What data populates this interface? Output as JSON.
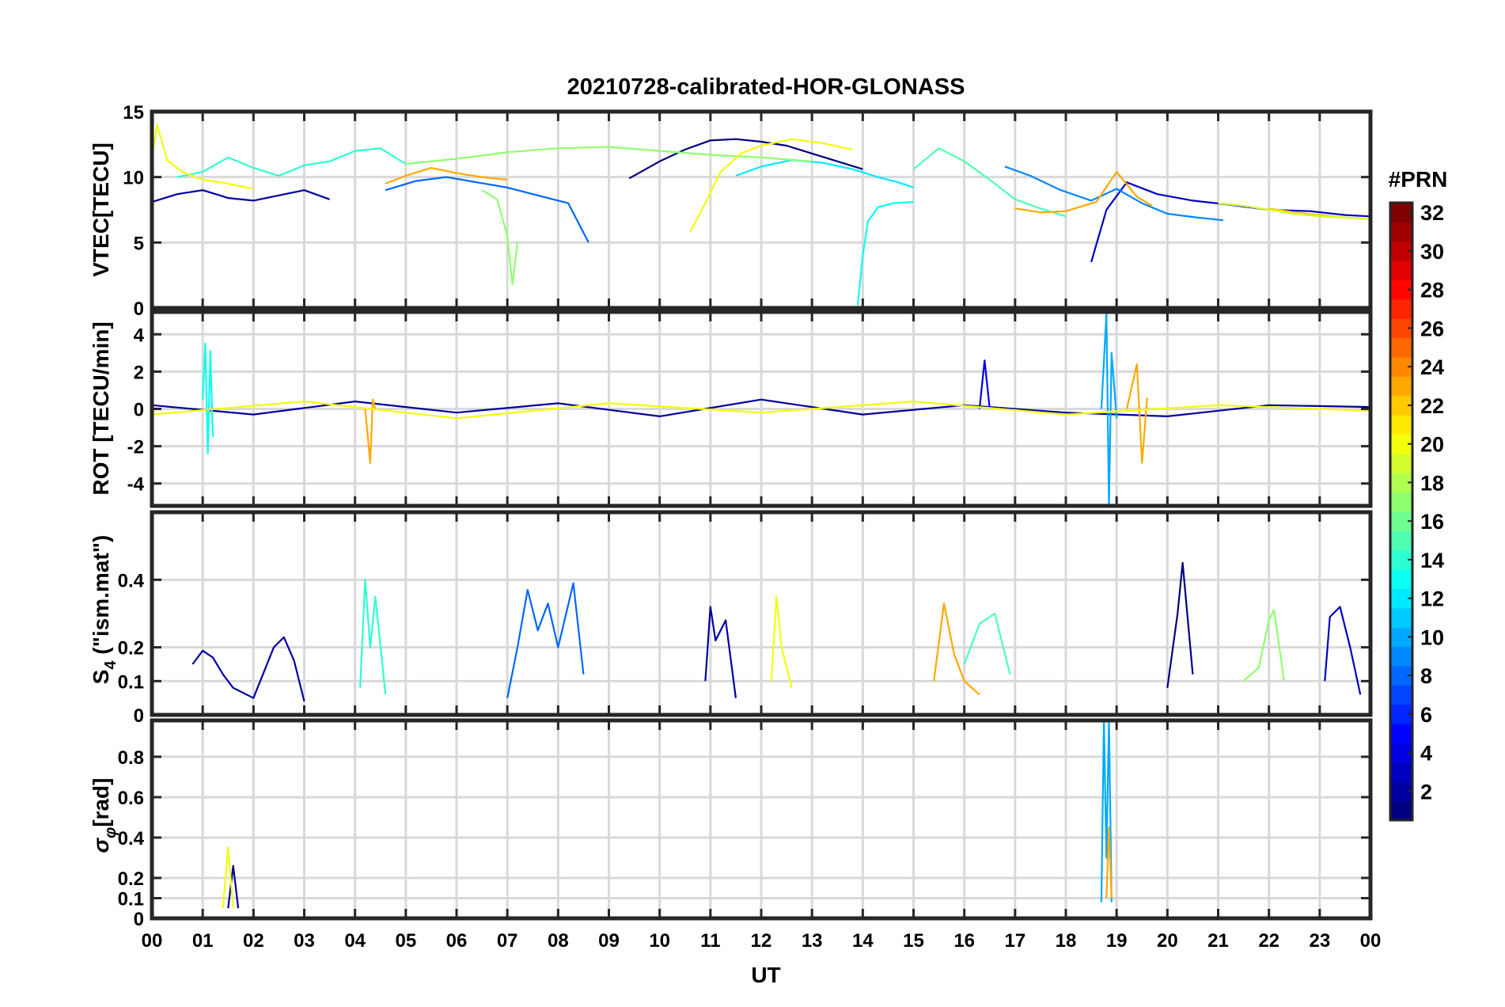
{
  "chart_data": [
    {
      "type": "line",
      "panel": "vtec",
      "title": "20210728-calibrated-HOR-GLONASS",
      "xlabel": "",
      "ylabel": "VTEC[TECU]",
      "xlim": [
        0,
        24
      ],
      "ylim": [
        0,
        15
      ],
      "yticks": [
        0,
        5,
        10,
        15
      ],
      "ytick_labels": [
        "0",
        "5",
        "10",
        "15"
      ],
      "grid": true,
      "series": [
        {
          "name": "PRN 2",
          "prn": 2,
          "x": [
            0.0,
            0.5,
            1.0,
            1.5,
            2.0,
            2.5,
            3.0,
            3.5
          ],
          "y": [
            8.1,
            8.7,
            9.0,
            8.4,
            8.2,
            8.6,
            9.0,
            8.3
          ]
        },
        {
          "name": "PRN 1",
          "prn": 1,
          "x": [
            9.4,
            10.0,
            10.5,
            11.0,
            11.5,
            12.0,
            12.5,
            13.0,
            13.5,
            14.0
          ],
          "y": [
            9.9,
            11.2,
            12.1,
            12.8,
            12.9,
            12.7,
            12.4,
            11.8,
            11.2,
            10.6
          ]
        },
        {
          "name": "PRN 3",
          "prn": 3,
          "x": [
            18.5,
            18.8,
            19.2,
            19.8,
            20.5,
            21.2,
            22.0,
            22.8,
            23.5,
            24.0
          ],
          "y": [
            3.5,
            7.5,
            9.6,
            8.7,
            8.2,
            7.9,
            7.5,
            7.4,
            7.1,
            7.0
          ]
        },
        {
          "name": "PRN 8",
          "prn": 8,
          "x": [
            4.6,
            5.2,
            5.8,
            6.4,
            7.0,
            7.6,
            8.2,
            8.6
          ],
          "y": [
            9.0,
            9.7,
            10.0,
            9.6,
            9.2,
            8.6,
            8.0,
            5.0
          ]
        },
        {
          "name": "PRN 9",
          "prn": 9,
          "x": [
            16.8,
            17.3,
            17.9,
            18.5,
            19.0,
            19.5,
            20.0,
            20.6,
            21.1
          ],
          "y": [
            10.8,
            10.1,
            9.0,
            8.2,
            9.1,
            8.0,
            7.2,
            6.9,
            6.7
          ]
        },
        {
          "name": "PRN 12",
          "prn": 12,
          "x": [
            11.5,
            12.0,
            12.6,
            13.2,
            13.8,
            14.3,
            14.7,
            15.0
          ],
          "y": [
            10.1,
            10.8,
            11.3,
            11.1,
            10.6,
            10.0,
            9.6,
            9.2
          ]
        },
        {
          "name": "PRN 13",
          "prn": 13,
          "x": [
            13.9,
            14.0,
            14.1,
            14.3,
            14.6,
            15.0
          ],
          "y": [
            0.2,
            4.0,
            6.6,
            7.7,
            8.0,
            8.1
          ]
        },
        {
          "name": "PRN 14",
          "prn": 14,
          "x": [
            0.5,
            1.0,
            1.5,
            2.0,
            2.5,
            3.0,
            3.5,
            4.0,
            4.5,
            5.0
          ],
          "y": [
            10.0,
            10.4,
            11.5,
            10.7,
            10.1,
            10.9,
            11.2,
            12.0,
            12.2,
            11.0
          ]
        },
        {
          "name": "PRN 15",
          "prn": 15,
          "x": [
            15.0,
            15.5,
            16.0,
            16.5,
            17.0,
            17.5,
            18.0
          ],
          "y": [
            10.6,
            12.2,
            11.2,
            9.8,
            8.3,
            7.6,
            7.0
          ]
        },
        {
          "name": "PRN 17",
          "prn": 17,
          "x": [
            6.5,
            6.8,
            7.0,
            7.1,
            7.2
          ],
          "y": [
            9.0,
            8.3,
            5.5,
            1.8,
            5.0
          ]
        },
        {
          "name": "PRN 17b",
          "prn": 17,
          "x": [
            5.0,
            6.0,
            7.0,
            8.0,
            9.0,
            10.0,
            11.0,
            12.0,
            13.0
          ],
          "y": [
            11.0,
            11.4,
            11.9,
            12.2,
            12.3,
            12.0,
            11.7,
            11.5,
            11.2
          ]
        },
        {
          "name": "PRN 20",
          "prn": 20,
          "x": [
            0.0,
            0.1,
            0.3,
            0.6,
            1.0,
            1.5,
            2.0
          ],
          "y": [
            11.5,
            14.0,
            11.3,
            10.4,
            9.8,
            9.5,
            9.1
          ]
        },
        {
          "name": "PRN 20b",
          "prn": 20,
          "x": [
            10.6,
            10.9,
            11.2,
            11.6,
            12.0,
            12.6,
            13.2,
            13.8
          ],
          "y": [
            5.8,
            8.0,
            10.4,
            11.8,
            12.4,
            12.9,
            12.6,
            12.1
          ]
        },
        {
          "name": "PRN 22",
          "prn": 22,
          "x": [
            22.0,
            22.5,
            23.0,
            23.5,
            24.0
          ],
          "y": [
            7.6,
            7.3,
            7.1,
            6.9,
            6.8
          ]
        },
        {
          "name": "PRN 23",
          "prn": 23,
          "x": [
            4.6,
            5.0,
            5.5,
            6.0,
            6.5,
            7.0
          ],
          "y": [
            9.5,
            10.1,
            10.7,
            10.3,
            10.0,
            9.8
          ]
        },
        {
          "name": "PRN 23b",
          "prn": 23,
          "x": [
            17.0,
            17.5,
            18.0,
            18.6,
            19.0,
            19.4,
            19.7
          ],
          "y": [
            7.6,
            7.3,
            7.4,
            8.1,
            10.4,
            8.5,
            7.8
          ]
        },
        {
          "name": "PRN 19",
          "prn": 19,
          "x": [
            21.0,
            21.5,
            22.0,
            22.5,
            23.0,
            23.5,
            24.0
          ],
          "y": [
            8.0,
            7.8,
            7.5,
            7.2,
            7.0,
            6.9,
            6.8
          ]
        }
      ]
    },
    {
      "type": "line",
      "panel": "rot",
      "xlabel": "",
      "ylabel": "ROT [TECU/min]",
      "xlim": [
        0,
        24
      ],
      "ylim": [
        -5.2,
        5.2
      ],
      "yticks": [
        -4,
        -2,
        0,
        2,
        4
      ],
      "ytick_labels": [
        "-4",
        "-2",
        "0",
        "2",
        "4"
      ],
      "grid": true,
      "series": [
        {
          "name": "PRN 2",
          "prn": 2,
          "x": [
            0.0,
            2.0,
            4.0,
            6.0,
            8.0,
            10.0,
            12.0,
            14.0,
            16.0,
            18.0,
            20.0,
            22.0,
            24.0
          ],
          "y": [
            0.2,
            -0.3,
            0.4,
            -0.2,
            0.3,
            -0.4,
            0.5,
            -0.3,
            0.2,
            -0.2,
            -0.4,
            0.2,
            0.1
          ]
        },
        {
          "name": "PRN 10",
          "prn": 10,
          "x": [
            18.7,
            18.8,
            18.85,
            18.9,
            19.0
          ],
          "y": [
            0.0,
            5.1,
            -5.2,
            3.0,
            -0.5
          ]
        },
        {
          "name": "PRN 13",
          "prn": 13,
          "x": [
            1.0,
            1.05,
            1.1,
            1.15,
            1.2
          ],
          "y": [
            0.5,
            3.5,
            -2.4,
            3.1,
            -1.5
          ]
        },
        {
          "name": "PRN 23",
          "prn": 23,
          "x": [
            4.2,
            4.3,
            4.35,
            4.4
          ],
          "y": [
            0.0,
            -2.9,
            0.5,
            0.0
          ]
        },
        {
          "name": "PRN 23b",
          "prn": 23,
          "x": [
            19.2,
            19.4,
            19.5,
            19.6
          ],
          "y": [
            0.0,
            2.4,
            -2.9,
            0.6
          ]
        },
        {
          "name": "PRN 4",
          "prn": 4,
          "x": [
            16.3,
            16.4,
            16.5
          ],
          "y": [
            0.0,
            2.6,
            0.0
          ]
        },
        {
          "name": "PRN 20",
          "prn": 20,
          "x": [
            0.0,
            3.0,
            6.0,
            9.0,
            12.0,
            15.0,
            18.0,
            21.0,
            24.0
          ],
          "y": [
            -0.3,
            0.4,
            -0.5,
            0.3,
            -0.2,
            0.4,
            -0.3,
            0.2,
            -0.1
          ]
        }
      ]
    },
    {
      "type": "line",
      "panel": "s4",
      "xlabel": "",
      "ylabel": "S4 (\"ism.mat\")",
      "ylabel_main": "S",
      "ylabel_sub": "4",
      "ylabel_rest": " (\"ism.mat\")",
      "xlim": [
        0,
        24
      ],
      "ylim": [
        0,
        0.6
      ],
      "yticks": [
        0,
        0.1,
        0.2,
        0.4
      ],
      "ytick_labels": [
        "0",
        "0.1",
        "0.2",
        "0.4"
      ],
      "grid": true,
      "series": [
        {
          "name": "PRN 2",
          "prn": 2,
          "x": [
            0.8,
            1.0,
            1.2,
            1.4,
            1.6,
            2.0,
            2.4,
            2.6,
            2.8,
            3.0
          ],
          "y": [
            0.15,
            0.19,
            0.17,
            0.12,
            0.08,
            0.05,
            0.2,
            0.23,
            0.16,
            0.04
          ]
        },
        {
          "name": "PRN 14",
          "prn": 14,
          "x": [
            4.1,
            4.2,
            4.3,
            4.4,
            4.6
          ],
          "y": [
            0.08,
            0.4,
            0.2,
            0.35,
            0.06
          ]
        },
        {
          "name": "PRN 8",
          "prn": 8,
          "x": [
            7.0,
            7.2,
            7.4,
            7.6,
            7.8,
            8.0,
            8.3,
            8.5
          ],
          "y": [
            0.05,
            0.2,
            0.37,
            0.25,
            0.33,
            0.2,
            0.39,
            0.12
          ]
        },
        {
          "name": "PRN 2b",
          "prn": 2,
          "x": [
            10.9,
            11.0,
            11.1,
            11.3,
            11.5
          ],
          "y": [
            0.1,
            0.32,
            0.22,
            0.28,
            0.05
          ]
        },
        {
          "name": "PRN 20",
          "prn": 20,
          "x": [
            12.2,
            12.3,
            12.4,
            12.6
          ],
          "y": [
            0.1,
            0.35,
            0.2,
            0.08
          ]
        },
        {
          "name": "PRN 23",
          "prn": 23,
          "x": [
            15.4,
            15.6,
            15.8,
            16.0,
            16.3
          ],
          "y": [
            0.1,
            0.33,
            0.18,
            0.1,
            0.06
          ]
        },
        {
          "name": "PRN 15",
          "prn": 15,
          "x": [
            16.0,
            16.3,
            16.6,
            16.9
          ],
          "y": [
            0.15,
            0.27,
            0.3,
            0.12
          ]
        },
        {
          "name": "PRN 1",
          "prn": 1,
          "x": [
            20.0,
            20.2,
            20.3,
            20.5
          ],
          "y": [
            0.08,
            0.3,
            0.45,
            0.12
          ]
        },
        {
          "name": "PRN 17",
          "prn": 17,
          "x": [
            21.5,
            21.8,
            22.0,
            22.1,
            22.3
          ],
          "y": [
            0.1,
            0.14,
            0.28,
            0.31,
            0.1
          ]
        },
        {
          "name": "PRN 3",
          "prn": 3,
          "x": [
            23.1,
            23.2,
            23.4,
            23.6,
            23.8
          ],
          "y": [
            0.1,
            0.29,
            0.32,
            0.2,
            0.06
          ]
        }
      ]
    },
    {
      "type": "line",
      "panel": "sigma_phi",
      "xlabel": "UT",
      "ylabel": "σφ[rad]",
      "ylabel_main": "σ",
      "ylabel_sub": "φ",
      "ylabel_rest": "[rad]",
      "xlim": [
        0,
        24
      ],
      "ylim": [
        0,
        0.98
      ],
      "yticks": [
        0,
        0.1,
        0.2,
        0.4,
        0.6,
        0.8
      ],
      "ytick_labels": [
        "0",
        "0.1",
        "0.2",
        "0.4",
        "0.6",
        "0.8"
      ],
      "xticks": [
        0,
        1,
        2,
        3,
        4,
        5,
        6,
        7,
        8,
        9,
        10,
        11,
        12,
        13,
        14,
        15,
        16,
        17,
        18,
        19,
        20,
        21,
        22,
        23,
        24
      ],
      "xtick_labels": [
        "00",
        "01",
        "02",
        "03",
        "04",
        "05",
        "06",
        "07",
        "08",
        "09",
        "10",
        "11",
        "12",
        "13",
        "14",
        "15",
        "16",
        "17",
        "18",
        "19",
        "20",
        "21",
        "22",
        "23",
        "00"
      ],
      "grid": true,
      "series": [
        {
          "name": "PRN 10",
          "prn": 10,
          "x": [
            18.7,
            18.75,
            18.8,
            18.85,
            18.9
          ],
          "y": [
            0.08,
            0.98,
            0.3,
            0.98,
            0.08
          ]
        },
        {
          "name": "PRN 23",
          "prn": 23,
          "x": [
            18.8,
            18.85,
            18.9
          ],
          "y": [
            0.1,
            0.45,
            0.1
          ]
        },
        {
          "name": "PRN 2",
          "prn": 2,
          "x": [
            1.5,
            1.6,
            1.7
          ],
          "y": [
            0.05,
            0.26,
            0.05
          ]
        },
        {
          "name": "PRN 20",
          "prn": 20,
          "x": [
            1.4,
            1.5,
            1.6
          ],
          "y": [
            0.05,
            0.35,
            0.05
          ]
        }
      ]
    }
  ],
  "colorbar": {
    "label": "#PRN",
    "min": 1,
    "max": 32,
    "ticks": [
      2,
      4,
      6,
      8,
      10,
      12,
      14,
      16,
      18,
      20,
      22,
      24,
      26,
      28,
      30,
      32
    ],
    "tick_labels": [
      "2",
      "4",
      "6",
      "8",
      "10",
      "12",
      "14",
      "16",
      "18",
      "20",
      "22",
      "24",
      "26",
      "28",
      "30",
      "32"
    ]
  }
}
